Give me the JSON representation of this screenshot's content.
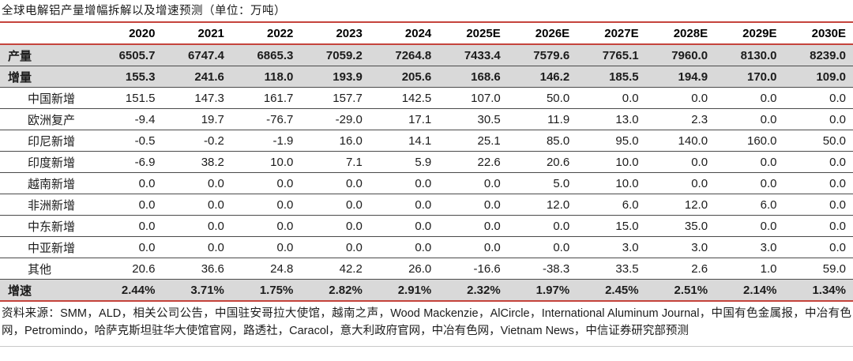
{
  "title": "全球电解铝产量增幅拆解以及增速预测（单位：万吨）",
  "colors": {
    "accent_red": "#c5443c",
    "band_gray": "#d9d9d9",
    "row_line": "#4a4a4a"
  },
  "table": {
    "columns": [
      "2020",
      "2021",
      "2022",
      "2023",
      "2024",
      "2025E",
      "2026E",
      "2027E",
      "2028E",
      "2029E",
      "2030E"
    ],
    "rows": [
      {
        "label": "产量",
        "style": "band",
        "indent": false,
        "values": [
          "6505.7",
          "6747.4",
          "6865.3",
          "7059.2",
          "7264.8",
          "7433.4",
          "7579.6",
          "7765.1",
          "7960.0",
          "8130.0",
          "8239.0"
        ]
      },
      {
        "label": "增量",
        "style": "band",
        "indent": false,
        "values": [
          "155.3",
          "241.6",
          "118.0",
          "193.9",
          "205.6",
          "168.6",
          "146.2",
          "185.5",
          "194.9",
          "170.0",
          "109.0"
        ]
      },
      {
        "label": "中国新增",
        "style": "plain",
        "indent": true,
        "values": [
          "151.5",
          "147.3",
          "161.7",
          "157.7",
          "142.5",
          "107.0",
          "50.0",
          "0.0",
          "0.0",
          "0.0",
          "0.0"
        ]
      },
      {
        "label": "欧洲复产",
        "style": "plain",
        "indent": true,
        "values": [
          "-9.4",
          "19.7",
          "-76.7",
          "-29.0",
          "17.1",
          "30.5",
          "11.9",
          "13.0",
          "2.3",
          "0.0",
          "0.0"
        ]
      },
      {
        "label": "印尼新增",
        "style": "plain",
        "indent": true,
        "values": [
          "-0.5",
          "-0.2",
          "-1.9",
          "16.0",
          "14.1",
          "25.1",
          "85.0",
          "95.0",
          "140.0",
          "160.0",
          "50.0"
        ]
      },
      {
        "label": "印度新增",
        "style": "plain",
        "indent": true,
        "values": [
          "-6.9",
          "38.2",
          "10.0",
          "7.1",
          "5.9",
          "22.6",
          "20.6",
          "10.0",
          "0.0",
          "0.0",
          "0.0"
        ]
      },
      {
        "label": "越南新增",
        "style": "plain",
        "indent": true,
        "values": [
          "0.0",
          "0.0",
          "0.0",
          "0.0",
          "0.0",
          "0.0",
          "5.0",
          "10.0",
          "0.0",
          "0.0",
          "0.0"
        ]
      },
      {
        "label": "非洲新增",
        "style": "plain",
        "indent": true,
        "values": [
          "0.0",
          "0.0",
          "0.0",
          "0.0",
          "0.0",
          "0.0",
          "12.0",
          "6.0",
          "12.0",
          "6.0",
          "0.0"
        ]
      },
      {
        "label": "中东新增",
        "style": "plain",
        "indent": true,
        "values": [
          "0.0",
          "0.0",
          "0.0",
          "0.0",
          "0.0",
          "0.0",
          "0.0",
          "15.0",
          "35.0",
          "0.0",
          "0.0"
        ]
      },
      {
        "label": "中亚新增",
        "style": "plain",
        "indent": true,
        "values": [
          "0.0",
          "0.0",
          "0.0",
          "0.0",
          "0.0",
          "0.0",
          "0.0",
          "3.0",
          "3.0",
          "3.0",
          "0.0"
        ]
      },
      {
        "label": "其他",
        "style": "plain",
        "indent": true,
        "values": [
          "20.6",
          "36.6",
          "24.8",
          "42.2",
          "26.0",
          "-16.6",
          "-38.3",
          "33.5",
          "2.6",
          "1.0",
          "59.0"
        ]
      },
      {
        "label": "增速",
        "style": "band",
        "indent": false,
        "values": [
          "2.44%",
          "3.71%",
          "1.75%",
          "2.82%",
          "2.91%",
          "2.32%",
          "1.97%",
          "2.45%",
          "2.51%",
          "2.14%",
          "1.34%"
        ]
      }
    ]
  },
  "footer": {
    "source_text": "资料来源：SMM，ALD，相关公司公告，中国驻安哥拉大使馆，越南之声，Wood Mackenzie，AlCircle，International Aluminum Journal，中国有色金属报，中冶有色网，Petromindo，哈萨克斯坦驻华大使馆官网，路透社，Caracol，意大利政府官网，中冶有色网，Vietnam News，中信证券研究部预测"
  }
}
